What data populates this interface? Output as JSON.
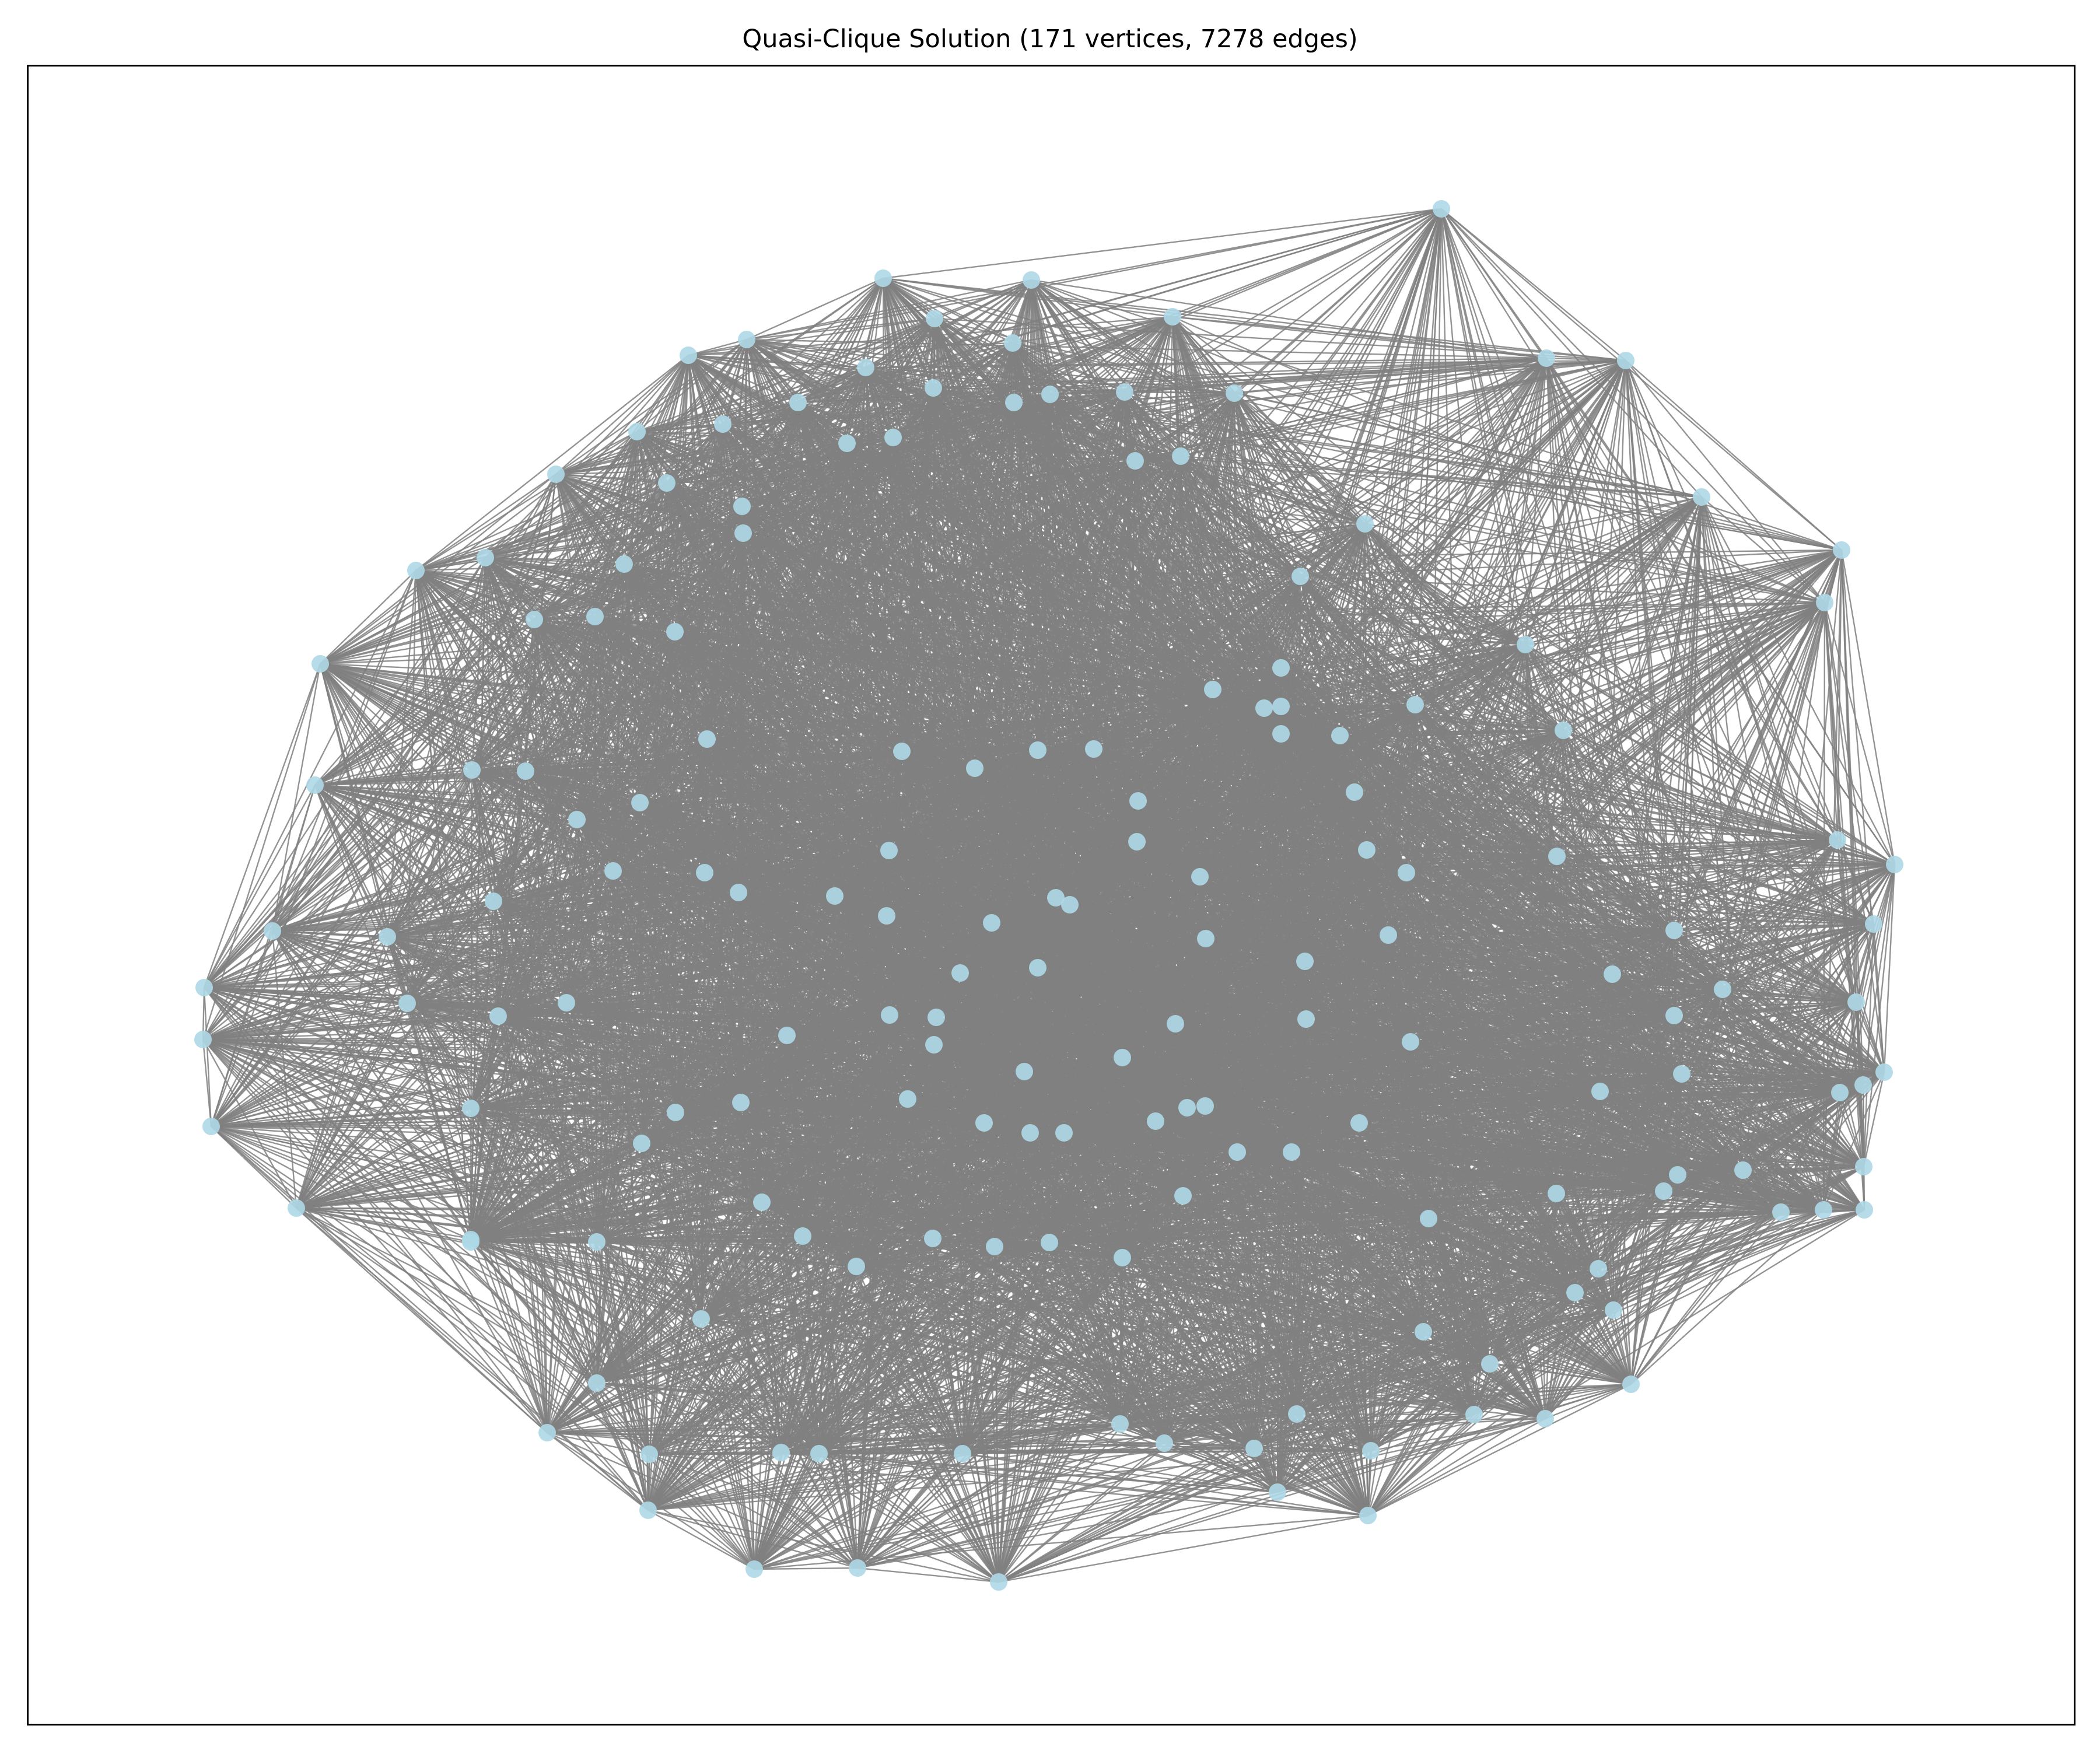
{
  "title": "Quasi-Clique Solution (171 vertices, 7278 edges)",
  "graph": {
    "vertex_count": 171,
    "edge_count": 7278,
    "node_color": "#add8e6",
    "edge_color": "#808080"
  }
}
